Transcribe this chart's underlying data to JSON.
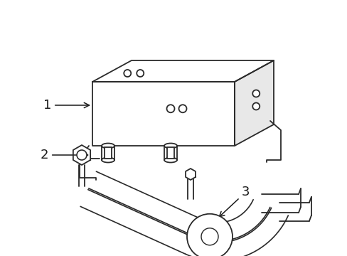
{
  "bg_color": "#ffffff",
  "line_color": "#2a2a2a",
  "label_color": "#1a1a1a",
  "fig_w": 4.89,
  "fig_h": 3.6,
  "dpi": 100
}
